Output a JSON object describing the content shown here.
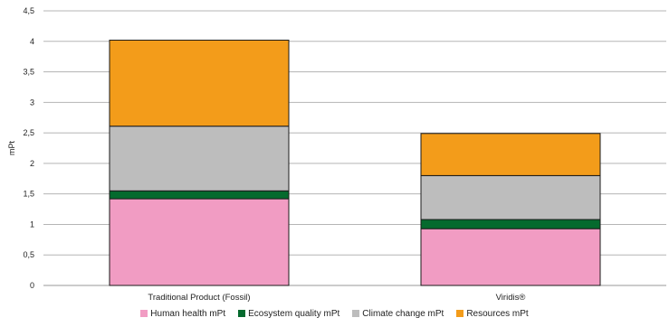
{
  "chart_data": {
    "type": "bar",
    "stacked": true,
    "categories": [
      "Traditional Product (Fossil)",
      "Viridis®"
    ],
    "series": [
      {
        "name": "Human health mPt",
        "color": "#f19cc3",
        "values": [
          1.42,
          0.93
        ]
      },
      {
        "name": "Ecosystem quality mPt",
        "color": "#056a2e",
        "values": [
          0.13,
          0.15
        ]
      },
      {
        "name": "Climate change mPt",
        "color": "#bdbdbd",
        "values": [
          1.06,
          0.72
        ]
      },
      {
        "name": "Resources mPt",
        "color": "#f39c1a",
        "values": [
          1.41,
          0.69
        ]
      }
    ],
    "ylabel": "mPt",
    "xlabel": "",
    "ylim": [
      0,
      4.5
    ],
    "yticks": [
      0,
      0.5,
      1,
      1.5,
      2,
      2.5,
      3,
      3.5,
      4,
      4.5
    ],
    "ytick_labels": [
      "0",
      "0,5",
      "1",
      "1,5",
      "2",
      "2,5",
      "3",
      "3,5",
      "4",
      "4,5"
    ],
    "grid": true,
    "legend_position": "bottom"
  }
}
